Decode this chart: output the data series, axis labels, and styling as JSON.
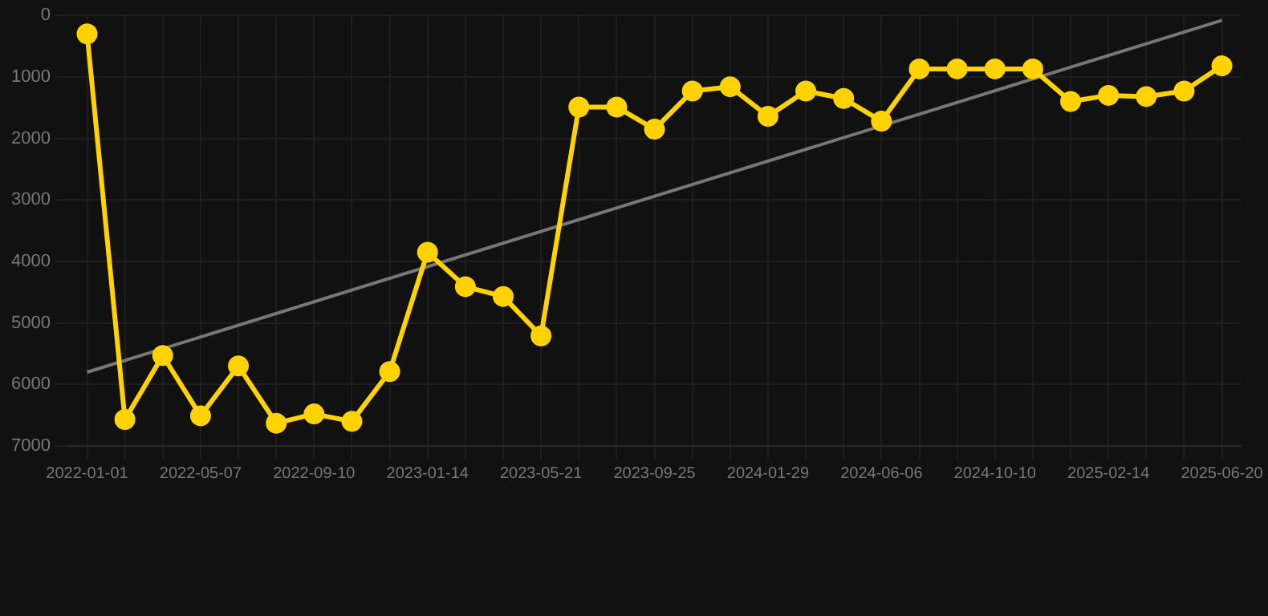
{
  "chart_data": {
    "type": "line",
    "categories": [
      "2022-01-01",
      null,
      null,
      "2022-05-07",
      null,
      null,
      "2022-09-10",
      null,
      null,
      "2023-01-14",
      null,
      null,
      "2023-05-21",
      null,
      null,
      "2023-09-25",
      null,
      null,
      "2024-01-29",
      null,
      null,
      "2024-06-06",
      null,
      null,
      "2024-10-10",
      null,
      null,
      "2025-02-14",
      null,
      null,
      "2025-06-20"
    ],
    "series": [
      {
        "color": "#ffd200",
        "values": [
          300,
          6570,
          5530,
          6510,
          5700,
          6630,
          6480,
          6600,
          5790,
          3850,
          4410,
          4570,
          5210,
          1490,
          1490,
          1850,
          1230,
          1160,
          1640,
          1230,
          1350,
          1720,
          870,
          870,
          870,
          870,
          1400,
          1300,
          1320,
          1230,
          820
        ]
      },
      {
        "type": "line",
        "color": "#777777",
        "marker": "none",
        "values": [
          5800,
          null,
          null,
          null,
          null,
          null,
          null,
          null,
          null,
          null,
          null,
          null,
          null,
          null,
          null,
          null,
          null,
          null,
          null,
          null,
          null,
          null,
          null,
          null,
          null,
          null,
          null,
          null,
          null,
          null,
          80
        ]
      }
    ],
    "ylim": [
      7000,
      0
    ],
    "yticks": [
      0,
      1000,
      2000,
      3000,
      4000,
      5000,
      6000,
      7000
    ],
    "grid": true,
    "marker": "circle",
    "line_style": "solid"
  }
}
